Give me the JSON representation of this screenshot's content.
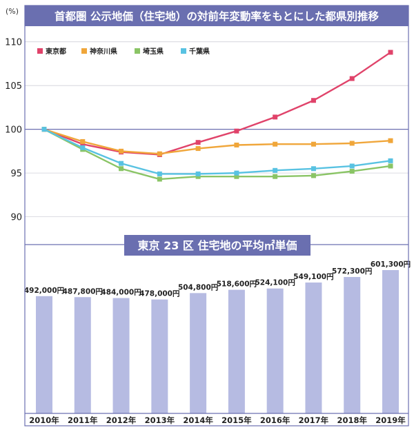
{
  "chart_data": [
    {
      "type": "line",
      "title": "首都圏 公示地価（住宅地）の対前年変動率をもとにした都県別推移",
      "ylabel": "(%)",
      "ylim": [
        88,
        111
      ],
      "yticks": [
        90,
        95,
        100,
        105,
        110
      ],
      "legend_position": "top-left",
      "grid": true,
      "x": [
        "2010年",
        "2011年",
        "2012年",
        "2013年",
        "2014年",
        "2015年",
        "2016年",
        "2017年",
        "2018年",
        "2019年"
      ],
      "series": [
        {
          "name": "東京都",
          "color": "#e0436a",
          "values": [
            100,
            98.3,
            97.4,
            97.1,
            98.5,
            99.8,
            101.4,
            103.3,
            105.8,
            108.8
          ]
        },
        {
          "name": "神奈川県",
          "color": "#f0a63a",
          "values": [
            100,
            98.6,
            97.5,
            97.2,
            97.8,
            98.2,
            98.3,
            98.3,
            98.4,
            98.7
          ]
        },
        {
          "name": "埼玉県",
          "color": "#8ac465",
          "values": [
            100,
            97.7,
            95.5,
            94.3,
            94.6,
            94.6,
            94.6,
            94.7,
            95.2,
            95.8
          ]
        },
        {
          "name": "千葉県",
          "color": "#58c2e2",
          "values": [
            100,
            97.9,
            96.1,
            94.9,
            94.9,
            95.0,
            95.3,
            95.5,
            95.8,
            96.4
          ]
        }
      ]
    },
    {
      "type": "bar",
      "title": "東京 23 区 住宅地の平均㎡単価",
      "categories": [
        "2010年",
        "2011年",
        "2012年",
        "2013年",
        "2014年",
        "2015年",
        "2016年",
        "2017年",
        "2018年",
        "2019年"
      ],
      "values": [
        492000,
        487800,
        484000,
        478000,
        504800,
        518600,
        524100,
        549100,
        572300,
        601300
      ],
      "labels": [
        "492,000円",
        "487,800円",
        "484,000円",
        "478,000円",
        "504,800円",
        "518,600円",
        "524,100円",
        "549,100円",
        "572,300円",
        "601,300円"
      ],
      "color": "#b6bbe2",
      "ylim": [
        0,
        601300
      ]
    }
  ]
}
